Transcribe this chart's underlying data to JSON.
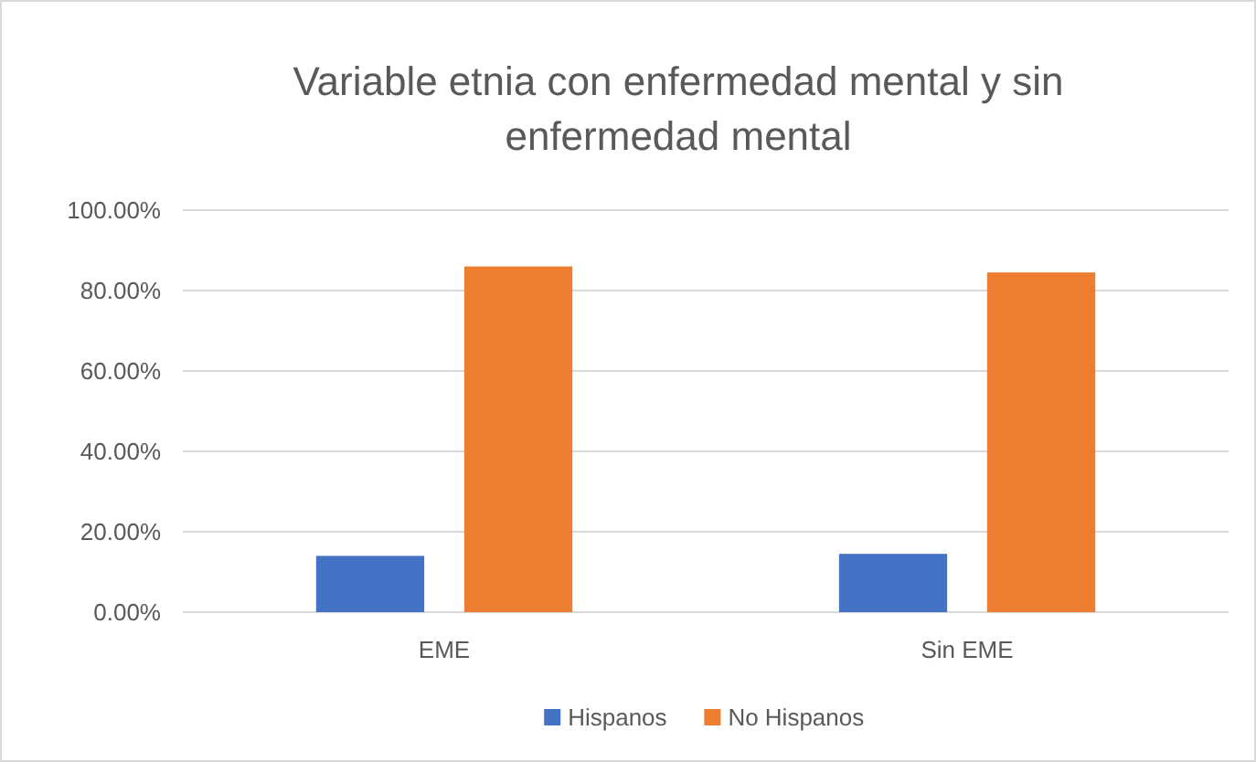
{
  "chart_data": {
    "type": "bar",
    "title": "Variable etnia con enfermedad mental y sin enfermedad mental",
    "categories": [
      "EME",
      "Sin EME"
    ],
    "series": [
      {
        "name": "Hispanos",
        "color": "#4472c4",
        "values": [
          14,
          14.5
        ]
      },
      {
        "name": "No Hispanos",
        "color": "#ed7d31",
        "values": [
          86,
          84.5
        ]
      }
    ],
    "ylim": [
      0,
      100
    ],
    "yticks": [
      {
        "value": 0,
        "label": "0.00%"
      },
      {
        "value": 20,
        "label": "20.00%"
      },
      {
        "value": 40,
        "label": "40.00%"
      },
      {
        "value": 60,
        "label": "60.00%"
      },
      {
        "value": 80,
        "label": "80.00%"
      },
      {
        "value": 100,
        "label": "100.00%"
      }
    ],
    "grid": "y",
    "legend": "bottom"
  }
}
